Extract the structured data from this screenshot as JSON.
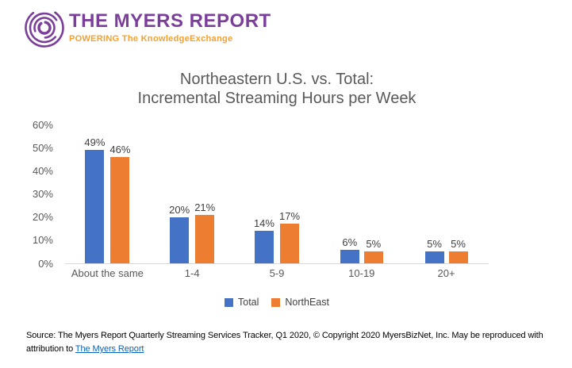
{
  "logo": {
    "title": "THE MYERS REPORT",
    "tagline": "POWERING The KnowledgeExchange",
    "purple": "#7B3F9B",
    "orange": "#F5A02D"
  },
  "chart_data": {
    "type": "bar",
    "title_line1": "Northeastern U.S. vs. Total:",
    "title_line2": "Incremental Streaming Hours per Week",
    "categories": [
      "About the same",
      "1-4",
      "5-9",
      "10-19",
      "20+"
    ],
    "series": [
      {
        "name": "Total",
        "color": "#4472C4",
        "values": [
          49,
          20,
          14,
          6,
          5
        ]
      },
      {
        "name": "NorthEast",
        "color": "#ED7D31",
        "values": [
          46,
          21,
          17,
          5,
          5
        ]
      }
    ],
    "value_suffix": "%",
    "y_ticks": [
      "0%",
      "10%",
      "20%",
      "30%",
      "40%",
      "50%",
      "60%"
    ],
    "ylim": [
      0,
      60
    ],
    "grid": false,
    "data_labels": true,
    "legend_position": "bottom",
    "axis_line_color": "#d9d9d9"
  },
  "footer": {
    "line1": "Source: The Myers Report Quarterly Streaming Services Tracker, Q1 2020, © Copyright 2020 MyersBizNet, Inc. May be reproduced with",
    "line2_prefix": "attribution to ",
    "link_text": "The Myers Report",
    "link_color": "#0563C1"
  }
}
